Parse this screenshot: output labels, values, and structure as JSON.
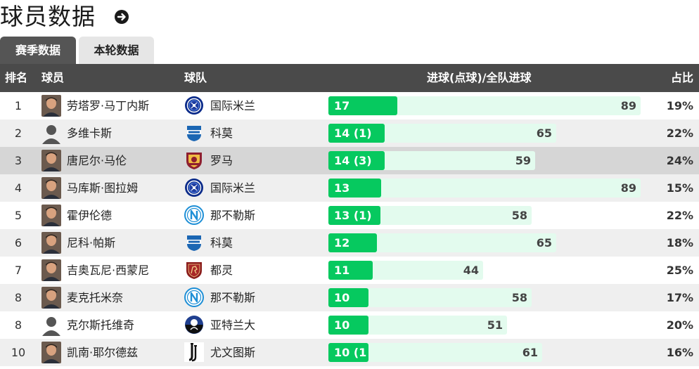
{
  "page": {
    "title": "球员数据"
  },
  "icons": {
    "title_action": "arrow-right-circle-icon"
  },
  "tabs": [
    {
      "label": "赛季数据",
      "active": true
    },
    {
      "label": "本轮数据",
      "active": false
    }
  ],
  "table": {
    "headers": {
      "rank": "排名",
      "player": "球员",
      "team": "球队",
      "goals": "进球(点球)/全队进球",
      "pct": "占比"
    },
    "max_team_goals": 89,
    "rows": [
      {
        "rank": "1",
        "player": "劳塔罗·马丁内斯",
        "team": "国际米兰",
        "logo": "inter-logo",
        "avatar": "photo",
        "goals_label": "17",
        "goals": 17,
        "team_goals": 89,
        "pct": "19%"
      },
      {
        "rank": "2",
        "player": "多维卡斯",
        "team": "科莫",
        "logo": "como-logo",
        "avatar": "silhouette",
        "goals_label": "14 (1)",
        "goals": 14,
        "team_goals": 65,
        "pct": "22%"
      },
      {
        "rank": "3",
        "player": "唐尼尔·马伦",
        "team": "罗马",
        "logo": "roma-logo",
        "avatar": "photo",
        "goals_label": "14 (3)",
        "goals": 14,
        "team_goals": 59,
        "pct": "24%",
        "highlight": true
      },
      {
        "rank": "4",
        "player": "马库斯·图拉姆",
        "team": "国际米兰",
        "logo": "inter-logo",
        "avatar": "photo",
        "goals_label": "13",
        "goals": 13,
        "team_goals": 89,
        "pct": "15%"
      },
      {
        "rank": "5",
        "player": "霍伊伦德",
        "team": "那不勒斯",
        "logo": "napoli-logo",
        "avatar": "photo",
        "goals_label": "13 (1)",
        "goals": 13,
        "team_goals": 58,
        "pct": "22%"
      },
      {
        "rank": "6",
        "player": "尼科·帕斯",
        "team": "科莫",
        "logo": "como-logo",
        "avatar": "photo",
        "goals_label": "12",
        "goals": 12,
        "team_goals": 65,
        "pct": "18%"
      },
      {
        "rank": "7",
        "player": "吉奥瓦尼·西蒙尼",
        "team": "都灵",
        "logo": "torino-logo",
        "avatar": "photo",
        "goals_label": "11",
        "goals": 11,
        "team_goals": 44,
        "pct": "25%"
      },
      {
        "rank": "8",
        "player": "麦克托米奈",
        "team": "那不勒斯",
        "logo": "napoli-logo",
        "avatar": "photo",
        "goals_label": "10",
        "goals": 10,
        "team_goals": 58,
        "pct": "17%"
      },
      {
        "rank": "8",
        "player": "克尔斯托维奇",
        "team": "亚特兰大",
        "logo": "atalanta-logo",
        "avatar": "silhouette",
        "goals_label": "10",
        "goals": 10,
        "team_goals": 51,
        "pct": "20%"
      },
      {
        "rank": "10",
        "player": "凯南·耶尔德兹",
        "team": "尤文图斯",
        "logo": "juventus-logo",
        "avatar": "photo",
        "goals_label": "10 (1",
        "goals": 10,
        "team_goals": 61,
        "pct": "16%"
      }
    ]
  }
}
